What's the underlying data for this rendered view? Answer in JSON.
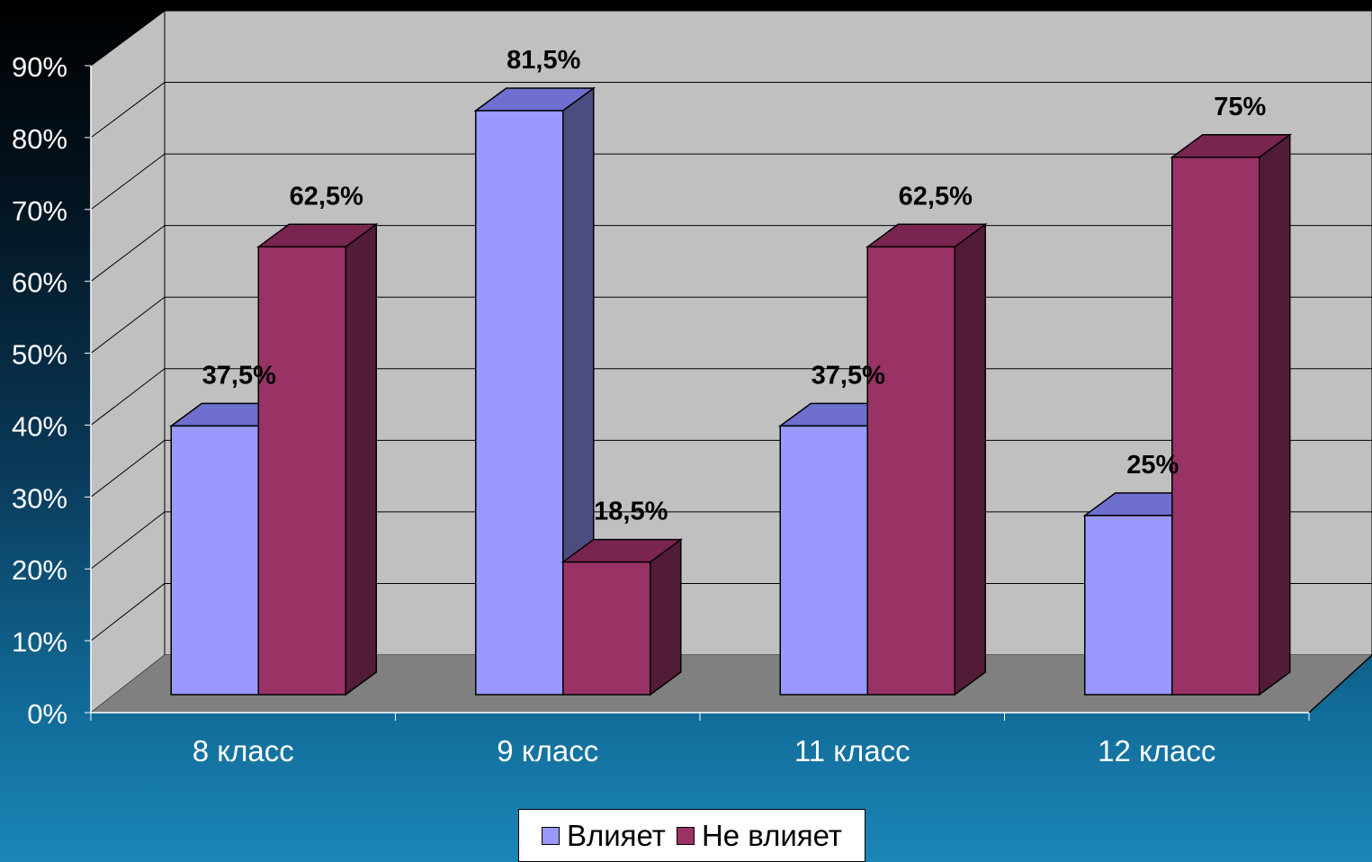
{
  "chart_data": {
    "type": "bar",
    "categories": [
      "8 класс",
      "9 класс",
      "11 класс",
      "12 класс"
    ],
    "series": [
      {
        "name": "Влияет",
        "values": [
          37.5,
          81.5,
          37.5,
          25
        ],
        "labels": [
          "37,5%",
          "81,5%",
          "37,5%",
          "25%"
        ],
        "color": "#9999ff",
        "top_color": "#6f6fcf",
        "side_color": "#4c4c80"
      },
      {
        "name": "Не влияет",
        "values": [
          62.5,
          18.5,
          62.5,
          75
        ],
        "labels": [
          "62,5%",
          "18,5%",
          "62,5%",
          "75%"
        ],
        "color": "#993366",
        "top_color": "#7a2450",
        "side_color": "#521c38"
      }
    ],
    "ylim": [
      0,
      90
    ],
    "yticks": [
      "0%",
      "10%",
      "20%",
      "30%",
      "40%",
      "50%",
      "60%",
      "70%",
      "80%",
      "90%"
    ],
    "grid": true,
    "legend_position": "bottom",
    "three_d": true,
    "wall_color": "#c0c0c0",
    "floor_color": "#808080"
  }
}
